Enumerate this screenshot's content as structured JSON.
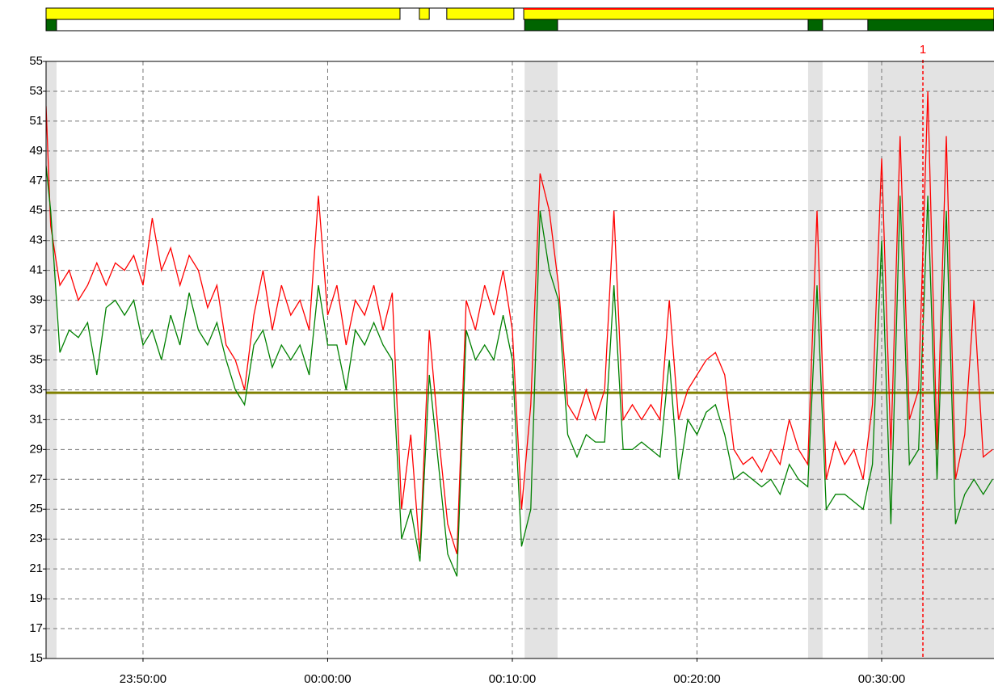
{
  "chart_data": {
    "type": "line",
    "x": [
      "23:44:45",
      "23:45:00",
      "23:45:30",
      "23:46:00",
      "23:46:30",
      "23:47:00",
      "23:47:30",
      "23:48:00",
      "23:48:30",
      "23:49:00",
      "23:49:30",
      "23:50:00",
      "23:50:30",
      "23:51:00",
      "23:51:30",
      "23:52:00",
      "23:52:30",
      "23:53:00",
      "23:53:30",
      "23:54:00",
      "23:54:30",
      "23:55:00",
      "23:55:30",
      "23:56:00",
      "23:56:30",
      "23:57:00",
      "23:57:30",
      "23:58:00",
      "23:58:30",
      "23:59:00",
      "23:59:30",
      "00:00:00",
      "00:00:30",
      "00:01:00",
      "00:01:30",
      "00:02:00",
      "00:02:30",
      "00:03:00",
      "00:03:30",
      "00:04:00",
      "00:04:30",
      "00:05:00",
      "00:05:30",
      "00:06:00",
      "00:06:30",
      "00:07:00",
      "00:07:30",
      "00:08:00",
      "00:08:30",
      "00:09:00",
      "00:09:30",
      "00:10:00",
      "00:10:30",
      "00:11:00",
      "00:11:30",
      "00:12:00",
      "00:12:30",
      "00:13:00",
      "00:13:30",
      "00:14:00",
      "00:14:30",
      "00:15:00",
      "00:15:30",
      "00:16:00",
      "00:16:30",
      "00:17:00",
      "00:17:30",
      "00:18:00",
      "00:18:30",
      "00:19:00",
      "00:19:30",
      "00:20:00",
      "00:20:30",
      "00:21:00",
      "00:21:30",
      "00:22:00",
      "00:22:30",
      "00:23:00",
      "00:23:30",
      "00:24:00",
      "00:24:30",
      "00:25:00",
      "00:25:30",
      "00:26:00",
      "00:26:30",
      "00:27:00",
      "00:27:30",
      "00:28:00",
      "00:28:30",
      "00:29:00",
      "00:29:30",
      "00:30:00",
      "00:30:30",
      "00:31:00",
      "00:31:30",
      "00:32:00",
      "00:32:30",
      "00:33:00",
      "00:33:30",
      "00:34:00",
      "00:34:30",
      "00:35:00",
      "00:35:30",
      "00:36:00"
    ],
    "series": [
      {
        "color": "#ff0000",
        "values": [
          52,
          44,
          40,
          41,
          39,
          40,
          41.5,
          40,
          41.5,
          41,
          42,
          40,
          44.5,
          41,
          42.5,
          40,
          42,
          41,
          38.5,
          40,
          36,
          35,
          33,
          38,
          41,
          37,
          40,
          38,
          39,
          37,
          46,
          38,
          40,
          36,
          39,
          38,
          40,
          37,
          39.5,
          25,
          30,
          22,
          37,
          30,
          24,
          22,
          39,
          37,
          40,
          38,
          41,
          37,
          25,
          32,
          47.5,
          45,
          40,
          32,
          31,
          33,
          31,
          33,
          45,
          31,
          32,
          31,
          32,
          31,
          39,
          31,
          33,
          34,
          35,
          35.5,
          34,
          29,
          28,
          28.5,
          27.5,
          29,
          28,
          31,
          29,
          28,
          45,
          27,
          29.5,
          28,
          29,
          27,
          32,
          48.5,
          29,
          50,
          31,
          33,
          53,
          29,
          50,
          27,
          30,
          39,
          28.5,
          29
        ]
      },
      {
        "color": "#008000",
        "values": [
          48,
          45,
          35.5,
          37,
          36.5,
          37.5,
          34,
          38.5,
          39,
          38,
          39,
          36,
          37,
          35,
          38,
          36,
          39.5,
          37,
          36,
          37.5,
          35,
          33,
          32,
          36,
          37,
          34.5,
          36,
          35,
          36,
          34,
          40,
          36,
          36,
          33,
          37,
          36,
          37.5,
          36,
          35,
          23,
          25,
          21.5,
          34,
          28,
          22,
          20.5,
          37,
          35,
          36,
          35,
          38,
          35,
          22.5,
          25,
          45,
          41,
          39,
          30,
          28.5,
          30,
          29.5,
          29.5,
          40,
          29,
          29,
          29.5,
          29,
          28.5,
          35,
          27,
          31,
          30,
          31.5,
          32,
          30,
          27,
          27.5,
          27,
          26.5,
          27,
          26,
          28,
          27,
          26.5,
          40,
          25,
          26,
          26,
          25.5,
          25,
          28,
          43,
          24,
          46,
          28,
          29,
          46,
          27,
          45,
          24,
          26,
          27,
          26,
          27
        ]
      }
    ],
    "xlim": [
      "23:44:45",
      "00:36:05"
    ],
    "xticks": [
      "23:50:00",
      "00:00:00",
      "00:10:00",
      "00:20:00",
      "00:30:00"
    ],
    "ylim": [
      15,
      55
    ],
    "yticks": [
      15,
      17,
      19,
      21,
      23,
      25,
      27,
      29,
      31,
      33,
      35,
      37,
      39,
      41,
      43,
      45,
      47,
      49,
      51,
      53,
      55
    ],
    "grid": true,
    "hline": {
      "value": 32.8,
      "color": "#808000"
    },
    "shaded": [
      {
        "start": "23:44:45",
        "end": "23:45:19"
      },
      {
        "start": "00:10:40",
        "end": "00:12:27"
      },
      {
        "start": "00:26:01",
        "end": "00:26:48"
      },
      {
        "start": "00:29:15",
        "end": "00:36:05"
      }
    ],
    "status": [
      {
        "start": "23:44:45",
        "end": "00:03:55",
        "color": "#ffff00"
      },
      {
        "start": "00:04:58",
        "end": "00:05:30",
        "color": "#ffff00"
      },
      {
        "start": "00:06:27",
        "end": "00:10:05",
        "color": "#ffff00"
      },
      {
        "start": "00:10:37",
        "end": "00:36:05",
        "color": "#ffff00",
        "outline": "#ff0000"
      }
    ],
    "marker": {
      "x": "00:32:14",
      "label": "1",
      "color": "#ff0000"
    }
  }
}
